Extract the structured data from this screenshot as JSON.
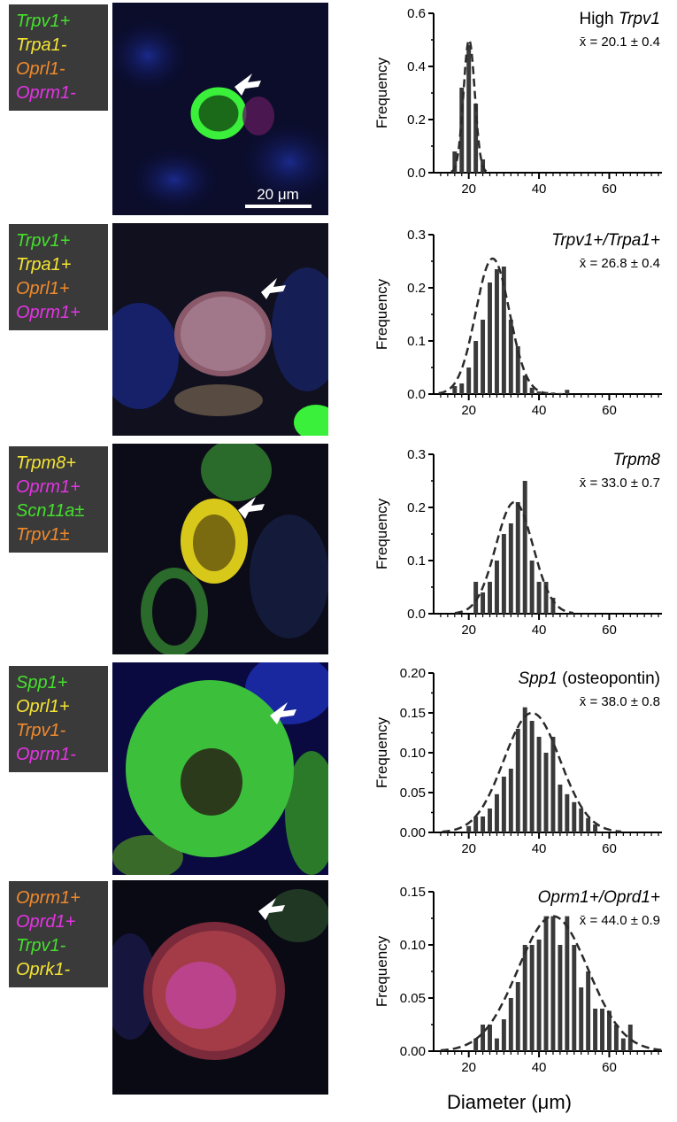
{
  "rows": [
    {
      "labels": [
        {
          "text": "Trpv1+",
          "color": "#44e02c"
        },
        {
          "text": "Trpa1-",
          "color": "#f4e434"
        },
        {
          "text": "Oprl1-",
          "color": "#f08a2c"
        },
        {
          "text": "Oprm1-",
          "color": "#e434e4"
        }
      ],
      "scale_bar": "20 μm"
    },
    {
      "labels": [
        {
          "text": "Trpv1+",
          "color": "#44e02c"
        },
        {
          "text": "Trpa1+",
          "color": "#f4e434"
        },
        {
          "text": "Oprl1+",
          "color": "#f08a2c"
        },
        {
          "text": "Oprm1+",
          "color": "#e434e4"
        }
      ]
    },
    {
      "labels": [
        {
          "text": "Trpm8+",
          "color": "#f4e434"
        },
        {
          "text": "Oprm1+",
          "color": "#e434e4"
        },
        {
          "text": "Scn11a±",
          "color": "#44e02c"
        },
        {
          "text": "Trpv1±",
          "color": "#f08a2c"
        }
      ]
    },
    {
      "labels": [
        {
          "text": "Spp1+",
          "color": "#44e02c"
        },
        {
          "text": "Oprl1+",
          "color": "#f4e434"
        },
        {
          "text": "Trpv1-",
          "color": "#f08a2c"
        },
        {
          "text": "Oprm1-",
          "color": "#e434e4"
        }
      ]
    },
    {
      "labels": [
        {
          "text": "Oprm1+",
          "color": "#f08a2c"
        },
        {
          "text": "Oprd1+",
          "color": "#e434e4"
        },
        {
          "text": "Trpv1-",
          "color": "#44e02c"
        },
        {
          "text": "Oprk1-",
          "color": "#f4e434"
        }
      ]
    }
  ],
  "chart_data": [
    {
      "type": "bar",
      "title_parts": [
        {
          "text": "High ",
          "italic": false
        },
        {
          "text": "Trpv1",
          "italic": true
        }
      ],
      "mean_text": "x̄ = 20.1 ± 0.4",
      "ylabel": "Frequency",
      "xlim": [
        10,
        75
      ],
      "ylim": [
        0,
        0.6
      ],
      "yticks": [
        0.0,
        0.2,
        0.4,
        0.6
      ],
      "ytick_labels": [
        "0.0",
        "0.2",
        "0.4",
        "0.6"
      ],
      "xticks": [
        20,
        40,
        60
      ],
      "bin_width": 2,
      "x": [
        16,
        18,
        20,
        22,
        24
      ],
      "values": [
        0.08,
        0.32,
        0.48,
        0.26,
        0.05
      ],
      "fit": {
        "mean": 20.1,
        "sd": 1.6,
        "peak": 0.5
      }
    },
    {
      "type": "bar",
      "title_parts": [
        {
          "text": "Trpv1+/Trpa1+",
          "italic": true
        }
      ],
      "mean_text": "x̄ = 26.8 ± 0.4",
      "ylabel": "Frequency",
      "xlim": [
        10,
        75
      ],
      "ylim": [
        0,
        0.3
      ],
      "yticks": [
        0.0,
        0.1,
        0.2,
        0.3
      ],
      "ytick_labels": [
        "0.0",
        "0.1",
        "0.2",
        "0.3"
      ],
      "xticks": [
        20,
        40,
        60
      ],
      "bin_width": 2,
      "x": [
        16,
        18,
        20,
        22,
        24,
        26,
        28,
        30,
        32,
        34,
        36,
        38,
        40,
        42,
        44,
        46,
        48
      ],
      "values": [
        0.015,
        0.02,
        0.05,
        0.1,
        0.14,
        0.21,
        0.235,
        0.24,
        0.14,
        0.09,
        0.035,
        0.012,
        0.005,
        0.004,
        0.003,
        0.002,
        0.008
      ],
      "fit": {
        "mean": 26.8,
        "sd": 4.8,
        "peak": 0.255
      }
    },
    {
      "type": "bar",
      "title_parts": [
        {
          "text": "Trpm8",
          "italic": true
        }
      ],
      "mean_text": "x̄ = 33.0 ± 0.7",
      "ylabel": "Frequency",
      "xlim": [
        10,
        75
      ],
      "ylim": [
        0,
        0.3
      ],
      "yticks": [
        0.0,
        0.1,
        0.2,
        0.3
      ],
      "ytick_labels": [
        "0.0",
        "0.1",
        "0.2",
        "0.3"
      ],
      "xticks": [
        20,
        40,
        60
      ],
      "bin_width": 2,
      "x": [
        22,
        24,
        26,
        28,
        30,
        32,
        34,
        36,
        38,
        40,
        42,
        44
      ],
      "values": [
        0.06,
        0.04,
        0.06,
        0.1,
        0.15,
        0.17,
        0.21,
        0.25,
        0.1,
        0.06,
        0.06,
        0.03
      ],
      "fit": {
        "mean": 33.0,
        "sd": 5.3,
        "peak": 0.21
      }
    },
    {
      "type": "bar",
      "title_parts": [
        {
          "text": "Spp1",
          "italic": true
        },
        {
          "text": " (osteopontin)",
          "italic": false
        }
      ],
      "mean_text": "x̄ = 38.0 ± 0.8",
      "ylabel": "Frequency",
      "xlim": [
        10,
        75
      ],
      "ylim": [
        0,
        0.2
      ],
      "yticks": [
        0.0,
        0.05,
        0.1,
        0.15,
        0.2
      ],
      "ytick_labels": [
        "0.00",
        "0.05",
        "0.10",
        "0.15",
        "0.20"
      ],
      "xticks": [
        20,
        40,
        60
      ],
      "bin_width": 2,
      "x": [
        20,
        22,
        24,
        26,
        28,
        30,
        32,
        34,
        36,
        38,
        40,
        42,
        44,
        46,
        48,
        50,
        52,
        54,
        56
      ],
      "values": [
        0.008,
        0.02,
        0.02,
        0.03,
        0.048,
        0.07,
        0.08,
        0.13,
        0.157,
        0.14,
        0.12,
        0.1,
        0.12,
        0.06,
        0.048,
        0.038,
        0.03,
        0.018,
        0.01
      ],
      "fit": {
        "mean": 38.0,
        "sd": 8.0,
        "peak": 0.15
      }
    },
    {
      "type": "bar",
      "title_parts": [
        {
          "text": "Oprm1+/Oprd1+",
          "italic": true
        }
      ],
      "mean_text": "x̄ = 44.0 ± 0.9",
      "ylabel": "Frequency",
      "xlim": [
        10,
        75
      ],
      "ylim": [
        0,
        0.15
      ],
      "yticks": [
        0.0,
        0.05,
        0.1,
        0.15
      ],
      "ytick_labels": [
        "0.00",
        "0.05",
        "0.10",
        "0.15"
      ],
      "xticks": [
        20,
        40,
        60
      ],
      "xtick_labels": [
        "20",
        "40",
        "60"
      ],
      "xlabel": "Diameter (μm)",
      "bin_width": 2,
      "x": [
        22,
        24,
        26,
        28,
        30,
        32,
        34,
        36,
        38,
        40,
        42,
        44,
        46,
        48,
        50,
        52,
        54,
        56,
        58,
        60,
        62,
        64,
        66
      ],
      "values": [
        0.012,
        0.025,
        0.025,
        0.012,
        0.03,
        0.05,
        0.065,
        0.1,
        0.1,
        0.105,
        0.127,
        0.127,
        0.1,
        0.127,
        0.1,
        0.06,
        0.075,
        0.04,
        0.04,
        0.038,
        0.025,
        0.012,
        0.025
      ],
      "fit": {
        "mean": 44.0,
        "sd": 10.0,
        "peak": 0.127
      }
    }
  ]
}
